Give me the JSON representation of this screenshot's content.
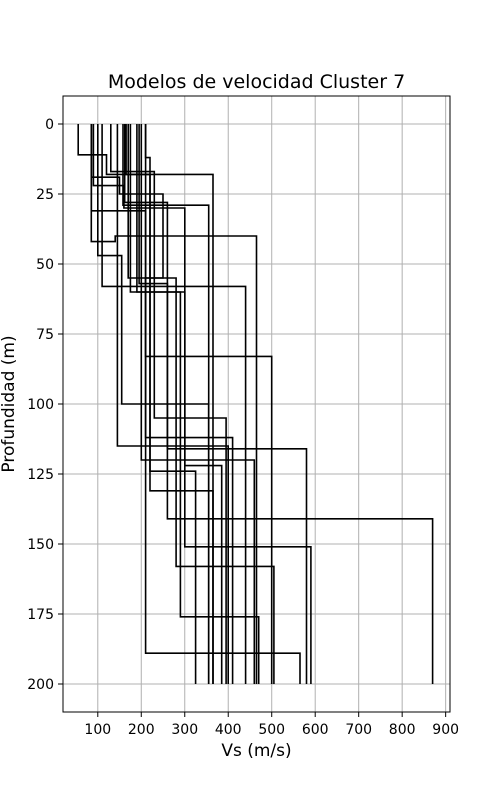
{
  "chart_data": {
    "type": "line",
    "title": "Modelos de velocidad Cluster 7",
    "xlabel": "Vs (m/s)",
    "ylabel": "Profundidad (m)",
    "xlim": [
      20,
      910
    ],
    "ylim": [
      210,
      -10
    ],
    "y_inverted": true,
    "grid": true,
    "legend": "none",
    "line_color": "#000000",
    "x_ticks": [
      100,
      200,
      300,
      400,
      500,
      600,
      700,
      800,
      900
    ],
    "y_ticks": [
      0,
      25,
      50,
      75,
      100,
      125,
      150,
      175,
      200
    ],
    "series": [
      {
        "points": [
          [
            55,
            0
          ],
          [
            55,
            11
          ],
          [
            120,
            11
          ],
          [
            120,
            18
          ],
          [
            365,
            18
          ],
          [
            365,
            200
          ]
        ]
      },
      {
        "points": [
          [
            85,
            0
          ],
          [
            85,
            19
          ],
          [
            150,
            19
          ],
          [
            150,
            25
          ],
          [
            250,
            25
          ],
          [
            250,
            55
          ],
          [
            210,
            55
          ],
          [
            210,
            83
          ],
          [
            500,
            83
          ],
          [
            500,
            200
          ]
        ]
      },
      {
        "points": [
          [
            90,
            0
          ],
          [
            90,
            22
          ],
          [
            160,
            22
          ],
          [
            160,
            30
          ],
          [
            300,
            30
          ],
          [
            300,
            122
          ],
          [
            385,
            122
          ],
          [
            385,
            200
          ]
        ]
      },
      {
        "points": [
          [
            85,
            0
          ],
          [
            85,
            31
          ],
          [
            210,
            31
          ],
          [
            210,
            112
          ],
          [
            410,
            112
          ],
          [
            410,
            200
          ]
        ]
      },
      {
        "points": [
          [
            85,
            0
          ],
          [
            85,
            42
          ],
          [
            140,
            42
          ],
          [
            140,
            40
          ],
          [
            465,
            40
          ],
          [
            465,
            200
          ]
        ]
      },
      {
        "points": [
          [
            100,
            0
          ],
          [
            100,
            47
          ],
          [
            155,
            47
          ],
          [
            155,
            58
          ],
          [
            440,
            58
          ],
          [
            440,
            200
          ]
        ]
      },
      {
        "points": [
          [
            110,
            0
          ],
          [
            110,
            58
          ],
          [
            155,
            58
          ],
          [
            155,
            100
          ],
          [
            355,
            100
          ],
          [
            355,
            200
          ]
        ]
      },
      {
        "points": [
          [
            130,
            0
          ],
          [
            130,
            17
          ],
          [
            230,
            17
          ],
          [
            230,
            105
          ],
          [
            395,
            105
          ],
          [
            395,
            200
          ]
        ]
      },
      {
        "points": [
          [
            145,
            0
          ],
          [
            145,
            115
          ],
          [
            400,
            115
          ],
          [
            400,
            200
          ]
        ]
      },
      {
        "points": [
          [
            158,
            0
          ],
          [
            158,
            29
          ],
          [
            355,
            29
          ],
          [
            355,
            200
          ]
        ]
      },
      {
        "points": [
          [
            162,
            0
          ],
          [
            162,
            28
          ],
          [
            260,
            28
          ],
          [
            260,
            116
          ],
          [
            580,
            116
          ],
          [
            580,
            200
          ]
        ]
      },
      {
        "points": [
          [
            165,
            0
          ],
          [
            165,
            18
          ],
          [
            220,
            18
          ],
          [
            220,
            124
          ],
          [
            325,
            124
          ],
          [
            325,
            200
          ]
        ]
      },
      {
        "points": [
          [
            210,
            0
          ],
          [
            210,
            12
          ],
          [
            220,
            12
          ],
          [
            220,
            131
          ],
          [
            365,
            131
          ],
          [
            365,
            200
          ]
        ]
      },
      {
        "points": [
          [
            200,
            0
          ],
          [
            200,
            120
          ],
          [
            460,
            120
          ],
          [
            460,
            200
          ]
        ]
      },
      {
        "points": [
          [
            195,
            0
          ],
          [
            195,
            57
          ],
          [
            260,
            57
          ],
          [
            260,
            141
          ],
          [
            870,
            141
          ],
          [
            870,
            200
          ]
        ]
      },
      {
        "points": [
          [
            190,
            0
          ],
          [
            190,
            60
          ],
          [
            300,
            60
          ],
          [
            300,
            151
          ],
          [
            590,
            151
          ],
          [
            590,
            200
          ]
        ]
      },
      {
        "points": [
          [
            170,
            0
          ],
          [
            170,
            55
          ],
          [
            280,
            55
          ],
          [
            280,
            158
          ],
          [
            505,
            158
          ],
          [
            505,
            200
          ]
        ]
      },
      {
        "points": [
          [
            175,
            0
          ],
          [
            175,
            60
          ],
          [
            290,
            60
          ],
          [
            290,
            176
          ],
          [
            470,
            176
          ],
          [
            470,
            200
          ]
        ]
      },
      {
        "points": [
          [
            210,
            0
          ],
          [
            210,
            189
          ],
          [
            565,
            189
          ],
          [
            565,
            200
          ]
        ]
      }
    ]
  }
}
